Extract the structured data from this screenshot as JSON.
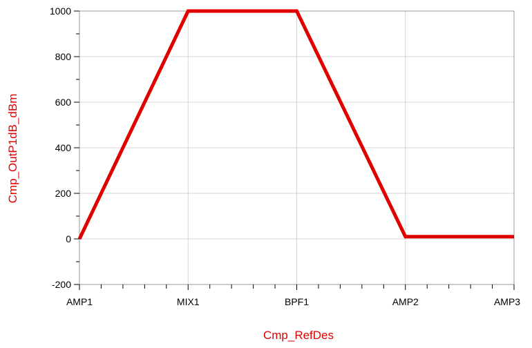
{
  "chart_data": {
    "type": "line",
    "categories": [
      "AMP1",
      "MIX1",
      "BPF1",
      "AMP2",
      "AMP3"
    ],
    "series": [
      {
        "values": [
          0,
          1000,
          1000,
          10,
          10
        ],
        "color": "#e00000"
      }
    ],
    "xlabel": "Cmp_RefDes",
    "ylabel": "Cmp_OutP1dB_dBm",
    "ylim": [
      -200,
      1000
    ],
    "yticks": [
      -200,
      0,
      200,
      400,
      600,
      800,
      1000
    ],
    "yticks_labels": [
      "-200",
      "0",
      "200",
      "400",
      "600",
      "800",
      "1000"
    ],
    "grid": true,
    "grid_color": "#d4d4d4",
    "axis_label_color": "#e00000",
    "frame_color": "#9a9a9a"
  }
}
